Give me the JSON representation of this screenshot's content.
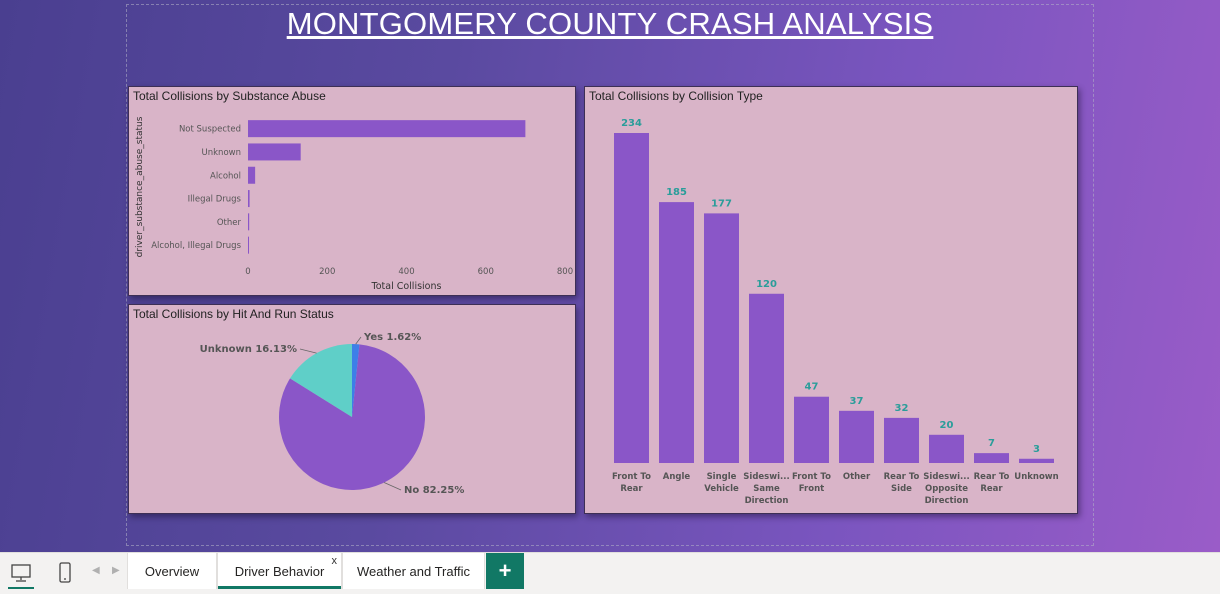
{
  "report": {
    "title": "MONTGOMERY COUNTY CRASH ANALYSIS"
  },
  "substance_chart": {
    "title": "Total Collisions by Substance Abuse",
    "ylabel": "driver_substance_abuse_status",
    "xlabel": "Total Collisions",
    "ticks": [
      "0",
      "200",
      "400",
      "600",
      "800"
    ]
  },
  "hitrun_chart": {
    "title": "Total Collisions by Hit And Run Status",
    "labels": {
      "no": "No 82.25%",
      "unknown": "Unknown 16.13%",
      "yes": "Yes 1.62%"
    }
  },
  "collision_chart": {
    "title": "Total Collisions by Collision Type"
  },
  "chart_data": [
    {
      "type": "bar",
      "orientation": "horizontal",
      "title": "Total Collisions by Substance Abuse",
      "ylabel": "driver_substance_abuse_status",
      "xlabel": "Total Collisions",
      "categories": [
        "Not Suspected",
        "Unknown",
        "Alcohol",
        "Illegal Drugs",
        "Other",
        "Alcohol, Illegal Drugs"
      ],
      "values": [
        700,
        133,
        18,
        4,
        3,
        2
      ],
      "xlim": [
        0,
        800
      ],
      "color": "#8a56c8"
    },
    {
      "type": "pie",
      "title": "Total Collisions by Hit And Run Status",
      "categories": [
        "No",
        "Unknown",
        "Yes"
      ],
      "values": [
        82.25,
        16.13,
        1.62
      ],
      "colors": [
        "#8a56c8",
        "#5fcfc8",
        "#3d7fe8"
      ]
    },
    {
      "type": "bar",
      "title": "Total Collisions by Collision Type",
      "categories": [
        "Front To Rear",
        "Angle",
        "Single Vehicle",
        "Sideswi... Same Direction",
        "Front To Front",
        "Other",
        "Rear To Side",
        "Sideswi... Opposite Direction",
        "Rear To Rear",
        "Unknown"
      ],
      "category_lines": [
        [
          "Front To",
          "Rear"
        ],
        [
          "Angle"
        ],
        [
          "Single",
          "Vehicle"
        ],
        [
          "Sideswi...",
          "Same",
          "Direction"
        ],
        [
          "Front To",
          "Front"
        ],
        [
          "Other"
        ],
        [
          "Rear To",
          "Side"
        ],
        [
          "Sideswi...",
          "Opposite",
          "Direction"
        ],
        [
          "Rear To",
          "Rear"
        ],
        [
          "Unknown"
        ]
      ],
      "values": [
        234,
        185,
        177,
        120,
        47,
        37,
        32,
        20,
        7,
        3
      ],
      "color": "#8a56c8",
      "label_color": "#2a9d9a"
    }
  ],
  "tabs": {
    "overview": "Overview",
    "driver_behavior": "Driver Behavior",
    "weather_traffic": "Weather and Traffic",
    "close": "x",
    "add": "+"
  },
  "colors": {
    "accent": "#117865",
    "bar": "#8a56c8"
  }
}
